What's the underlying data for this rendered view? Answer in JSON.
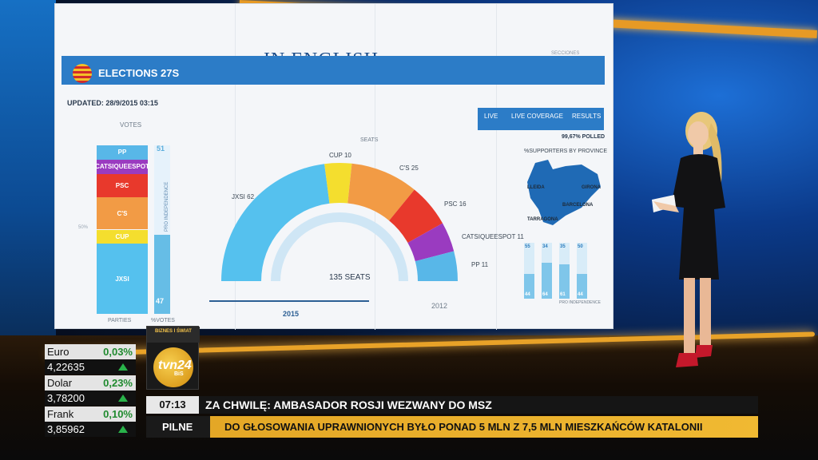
{
  "screen": {
    "title": "IN ENGLISH",
    "secciones": "SECCIONES",
    "elections_title": "ELECTIONS 27S",
    "updated": "UPDATED: 28/9/2015 03:15",
    "nav": [
      "LIVE",
      "LIVE COVERAGE",
      "RESULTS"
    ],
    "votes_label": "VOTES",
    "parties_label": "PARTIES",
    "votes_bottom_label": "%VOTES",
    "pct_side": "50%",
    "probability_top": "51",
    "probability_bottom": "47",
    "probability_vertical": "PRO INDEPENDENCE",
    "seats_label": "SEATS",
    "total_seats": "135 SEATS",
    "year_2015": "2015",
    "year_2012": "2012",
    "polled": "99,67% POLLED",
    "province_label": "%SUPPORTERS BY PROVINCE",
    "map_names": {
      "lleida": "LLEIDA",
      "girona": "GIRONA",
      "barcelona": "BARCELONA",
      "tarragona": "TARRAGONA"
    },
    "prov_foot": "PRO INDEPENDENCE"
  },
  "chart_data": [
    {
      "type": "bar",
      "title": "VOTES",
      "categories": [
        "PP",
        "CATSIQUEESPOT",
        "PSC",
        "C'S",
        "CUP",
        "JXSI"
      ],
      "colors": [
        "#58b7e8",
        "#9a3bc0",
        "#e8392c",
        "#f29b45",
        "#f4de2e",
        "#55c1ee"
      ],
      "values": [
        8,
        8,
        13,
        18,
        8,
        39
      ]
    },
    {
      "type": "pie",
      "title": "SEATS",
      "categories": [
        "JXSI",
        "CUP",
        "C'S",
        "PSC",
        "CATSIQUEESPOT",
        "PP"
      ],
      "values": [
        62,
        10,
        25,
        16,
        11,
        11
      ],
      "colors": [
        "#55c1ee",
        "#f4de2e",
        "#f29b45",
        "#e8392c",
        "#9a3bc0",
        "#58b7e8"
      ],
      "total_label": "135 SEATS"
    },
    {
      "type": "bar",
      "title": "%SUPPORTERS BY PROVINCE",
      "categories": [
        "BARCELONA",
        "GIRONA",
        "LLEIDA",
        "TARRAGONA"
      ],
      "values": [
        44,
        64,
        61,
        44
      ],
      "top_values": [
        55,
        34,
        35,
        50
      ]
    }
  ],
  "ticker": {
    "logo_top": "BIZNES I ŚWIAT",
    "logo_tvn": "tvn24",
    "logo_bis": "BiS",
    "time": "07:13",
    "headline": "ZA CHWILĘ: AMBASADOR ROSJI WEZWANY DO MSZ",
    "pilne": "PILNE",
    "breaking": "DO GŁOSOWANIA UPRAWNIONYCH BYŁO PONAD 5 MLN Z 7,5 MLN MIESZKAŃCÓW KATALONII",
    "fx": [
      {
        "name": "Euro",
        "change": "0,03%",
        "value": "4,22635"
      },
      {
        "name": "Dolar",
        "change": "0,23%",
        "value": "3,78200"
      },
      {
        "name": "Frank",
        "change": "0,10%",
        "value": "3,85962"
      }
    ]
  }
}
